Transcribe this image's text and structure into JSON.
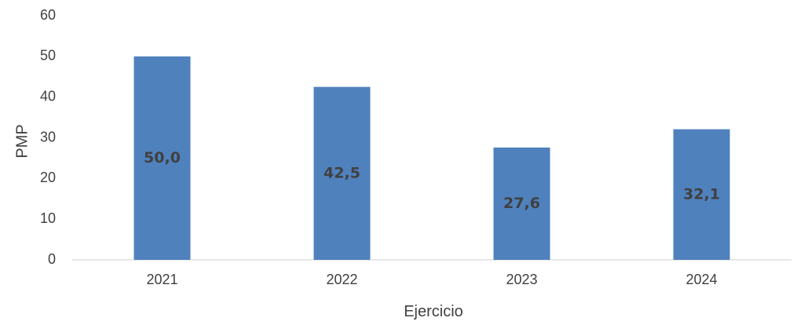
{
  "chart_data": {
    "type": "bar",
    "title": "",
    "xlabel": "Ejercicio",
    "ylabel": "PMP",
    "categories": [
      "2021",
      "2022",
      "2023",
      "2024"
    ],
    "values": [
      50.0,
      42.5,
      27.6,
      32.1
    ],
    "data_labels": [
      "50,0",
      "42,5",
      "27,6",
      "32,1"
    ],
    "ylim": [
      0,
      60
    ],
    "yticks": [
      0,
      10,
      20,
      30,
      40,
      50,
      60
    ],
    "ytick_labels": [
      "0",
      "10",
      "20",
      "30",
      "40",
      "50",
      "60"
    ],
    "grid": false,
    "legend": "none",
    "bar_color": "#4f81bd",
    "axis_color": "#d9d9d9",
    "text_color": "#404040"
  }
}
